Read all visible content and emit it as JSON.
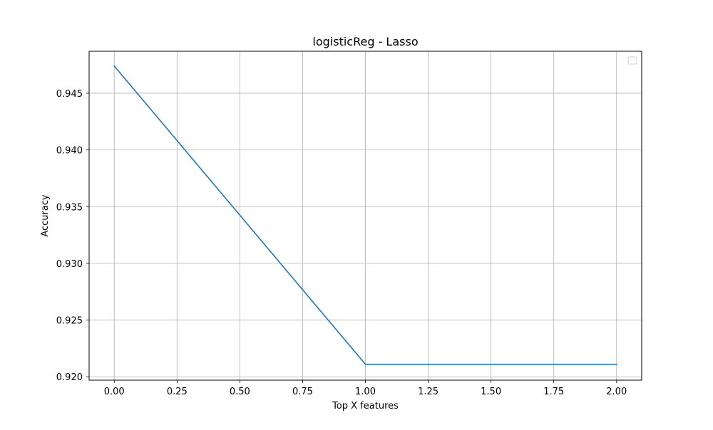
{
  "chart_data": {
    "type": "line",
    "title": "logisticReg - Lasso",
    "xlabel": "Top X features",
    "ylabel": "Accuracy",
    "xlim": [
      -0.1,
      2.1
    ],
    "ylim": [
      0.9197,
      0.9487
    ],
    "xticks": [
      0.0,
      0.25,
      0.5,
      0.75,
      1.0,
      1.25,
      1.5,
      1.75,
      2.0
    ],
    "xtick_labels": [
      "0.00",
      "0.25",
      "0.50",
      "0.75",
      "1.00",
      "1.25",
      "1.50",
      "1.75",
      "2.00"
    ],
    "yticks": [
      0.92,
      0.925,
      0.93,
      0.935,
      0.94,
      0.945
    ],
    "ytick_labels": [
      "0.920",
      "0.925",
      "0.930",
      "0.935",
      "0.940",
      "0.945"
    ],
    "grid": true,
    "legend": "top-right",
    "series": [
      {
        "x": [
          0,
          1,
          2
        ],
        "y": [
          0.9474,
          0.9211,
          0.9211
        ],
        "color": "#1f77b4"
      }
    ]
  },
  "colors": {
    "line": "#1f77b4",
    "grid": "#b0b0b0",
    "axes": "#000000",
    "legend_border": "#cccccc"
  }
}
